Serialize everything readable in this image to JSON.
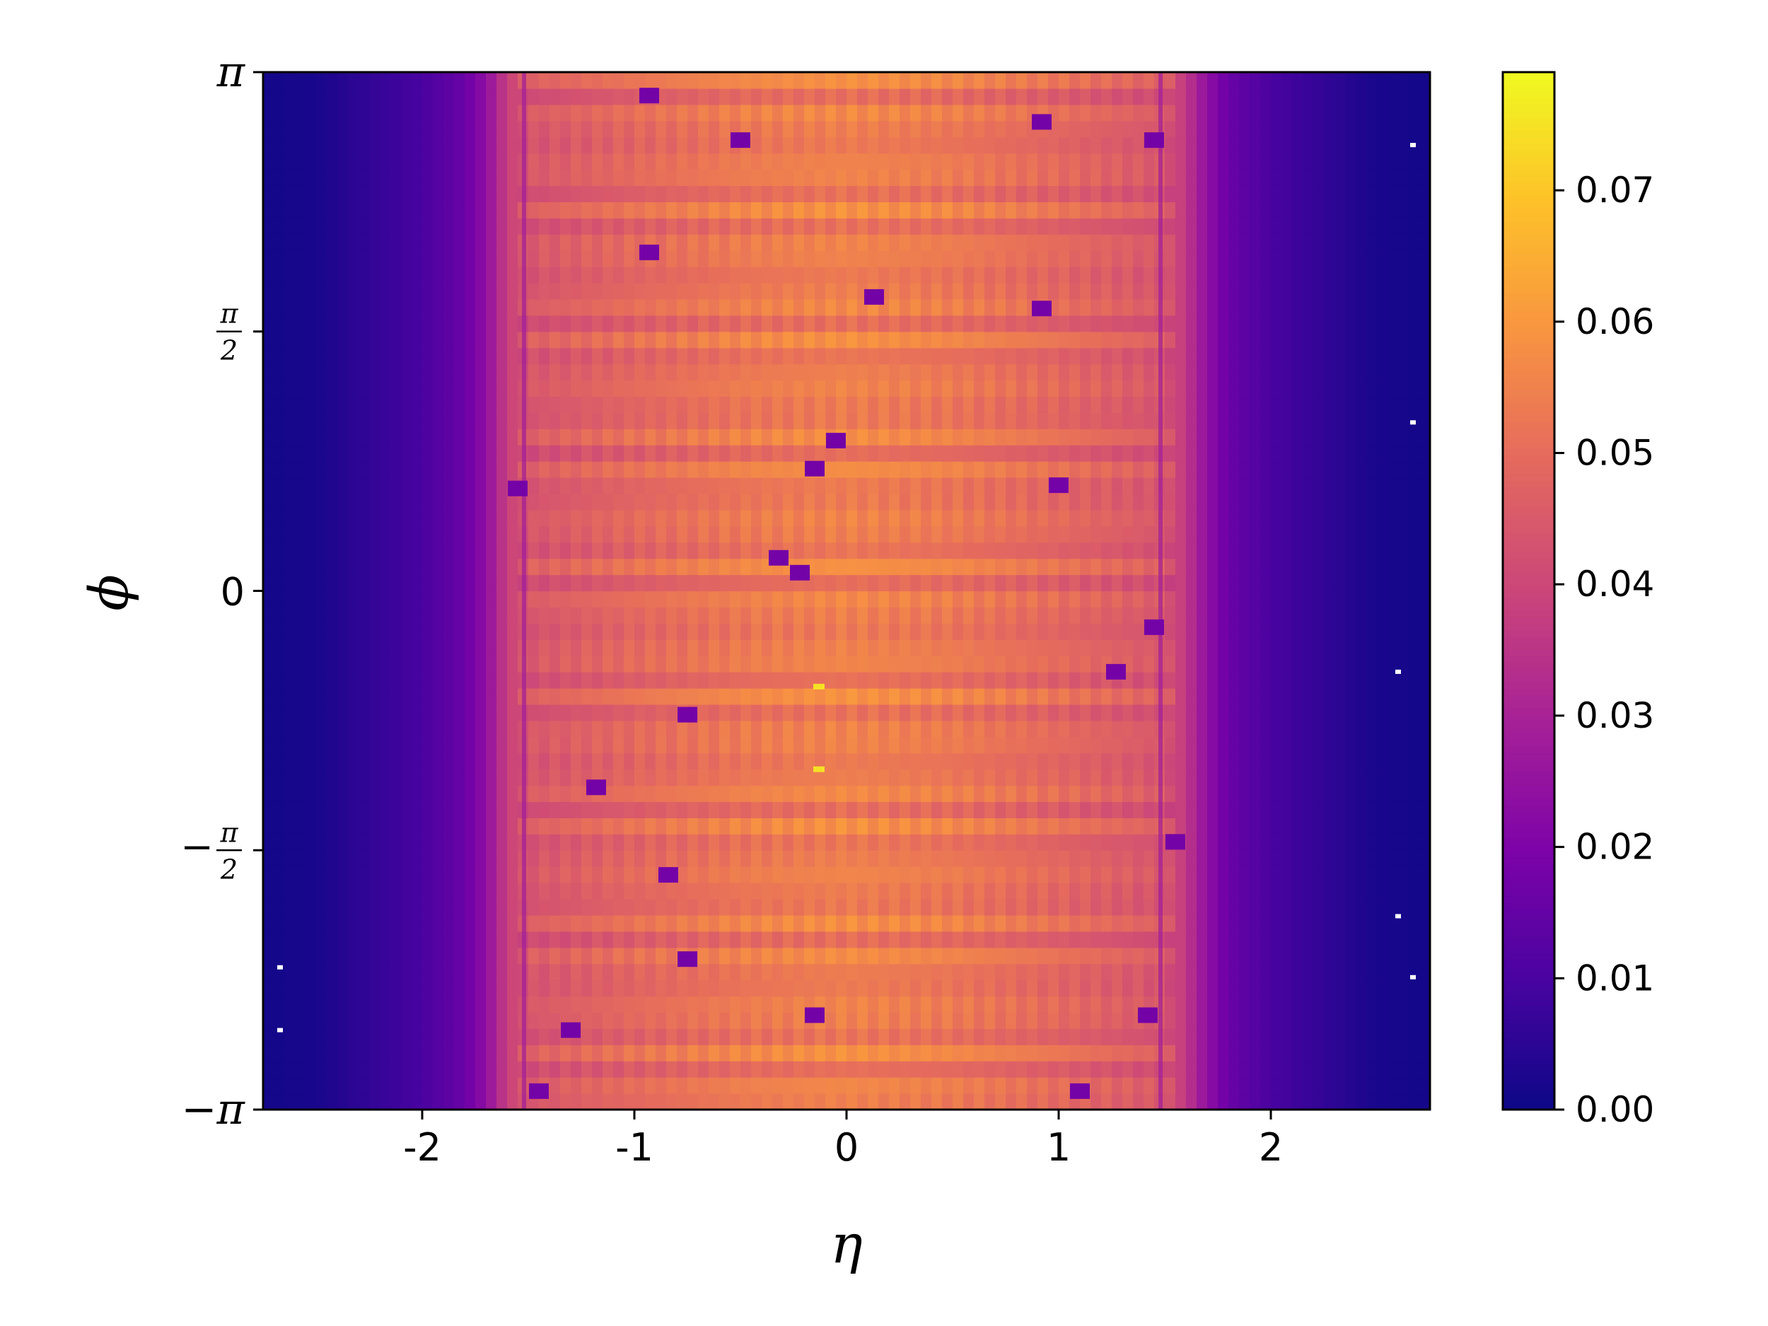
{
  "chart_data": {
    "type": "heatmap",
    "title": "",
    "xlabel": "η",
    "ylabel": "ϕ",
    "xlim": [
      -2.75,
      2.75
    ],
    "ylim": [
      -3.14159,
      3.14159
    ],
    "x_ticks": [
      {
        "value": -2,
        "label": "-2"
      },
      {
        "value": -1,
        "label": "-1"
      },
      {
        "value": 0,
        "label": "0"
      },
      {
        "value": 1,
        "label": "1"
      },
      {
        "value": 2,
        "label": "2"
      }
    ],
    "y_ticks": [
      {
        "value": -3.14159,
        "label": "−π"
      },
      {
        "value": -1.5708,
        "label": "−π/2"
      },
      {
        "value": 0,
        "label": "0"
      },
      {
        "value": 1.5708,
        "label": "π/2"
      },
      {
        "value": 3.14159,
        "label": "π"
      }
    ],
    "colormap": "plasma",
    "colorbar": {
      "range": [
        0.0,
        0.079
      ],
      "ticks": [
        "0.00",
        "0.01",
        "0.02",
        "0.03",
        "0.04",
        "0.05",
        "0.06",
        "0.07"
      ],
      "tick_values": [
        0.0,
        0.01,
        0.02,
        0.03,
        0.04,
        0.05,
        0.06,
        0.07
      ]
    },
    "grid": false,
    "eta_profile": {
      "eta": [
        -2.75,
        -2.5,
        -2.25,
        -2.0,
        -1.8,
        -1.7,
        -1.6,
        -1.5,
        -1.0,
        -0.5,
        0.0,
        0.5,
        1.0,
        1.5,
        1.6,
        1.7,
        1.8,
        2.0,
        2.25,
        2.5,
        2.75
      ],
      "mean_value": [
        0.001,
        0.002,
        0.006,
        0.01,
        0.016,
        0.024,
        0.038,
        0.045,
        0.05,
        0.054,
        0.056,
        0.054,
        0.05,
        0.045,
        0.036,
        0.024,
        0.016,
        0.01,
        0.006,
        0.002,
        0.001
      ]
    },
    "dead_cells": [
      {
        "eta": -0.93,
        "phi": 3.0
      },
      {
        "eta": -0.5,
        "phi": 2.73
      },
      {
        "eta": 0.92,
        "phi": 2.84
      },
      {
        "eta": 1.45,
        "phi": 2.73
      },
      {
        "eta": -0.93,
        "phi": 2.05
      },
      {
        "eta": 0.13,
        "phi": 1.78
      },
      {
        "eta": 0.92,
        "phi": 1.71
      },
      {
        "eta": -0.05,
        "phi": 0.91
      },
      {
        "eta": -0.15,
        "phi": 0.74
      },
      {
        "eta": 1.0,
        "phi": 0.64
      },
      {
        "eta": -1.55,
        "phi": 0.62
      },
      {
        "eta": -0.32,
        "phi": 0.2
      },
      {
        "eta": -0.22,
        "phi": 0.11
      },
      {
        "eta": 1.45,
        "phi": -0.22
      },
      {
        "eta": 1.27,
        "phi": -0.49
      },
      {
        "eta": -0.75,
        "phi": -0.75
      },
      {
        "eta": -1.18,
        "phi": -1.19
      },
      {
        "eta": 1.55,
        "phi": -1.52
      },
      {
        "eta": -0.84,
        "phi": -1.72
      },
      {
        "eta": -0.75,
        "phi": -2.23
      },
      {
        "eta": 1.42,
        "phi": -2.57
      },
      {
        "eta": -0.15,
        "phi": -2.57
      },
      {
        "eta": -1.3,
        "phi": -2.66
      },
      {
        "eta": -1.45,
        "phi": -3.03
      },
      {
        "eta": 1.1,
        "phi": -3.03
      }
    ],
    "hot_spots": [
      {
        "eta": -0.13,
        "phi": -0.58
      },
      {
        "eta": -0.13,
        "phi": -1.08
      }
    ],
    "white_pixels": [
      {
        "eta": 2.67,
        "phi": 2.7
      },
      {
        "eta": 2.67,
        "phi": 1.02
      },
      {
        "eta": 2.6,
        "phi": -0.49
      },
      {
        "eta": 2.6,
        "phi": -1.97
      },
      {
        "eta": 2.67,
        "phi": -2.34
      },
      {
        "eta": -2.67,
        "phi": -2.28
      },
      {
        "eta": -2.67,
        "phi": -2.66
      }
    ]
  }
}
